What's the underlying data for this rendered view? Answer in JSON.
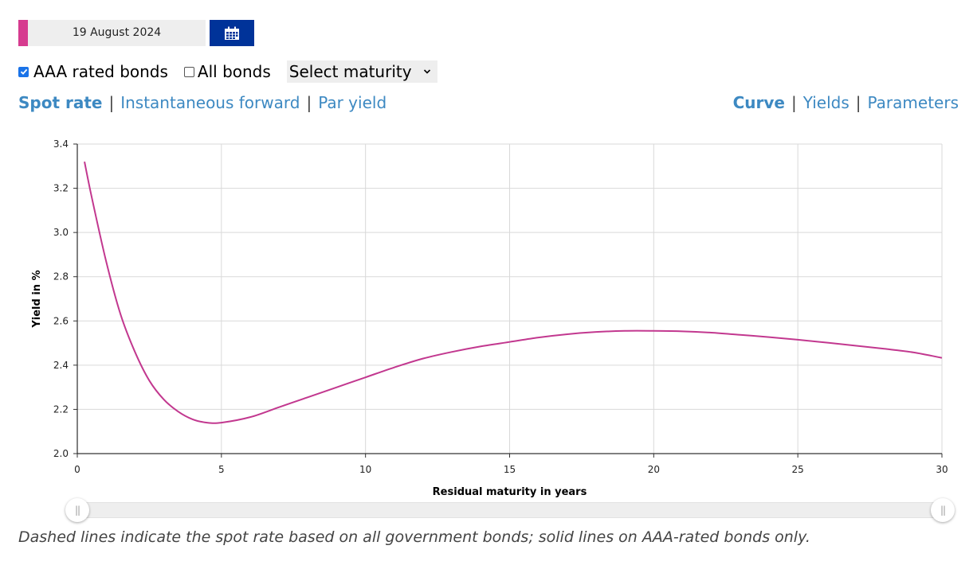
{
  "date_picker": {
    "value": "19 August 2024",
    "accent_color": "#d63b8f",
    "button_icon": "calendar-icon",
    "button_color": "#003399"
  },
  "filters": {
    "aaa": {
      "label": "AAA rated bonds",
      "checked": true
    },
    "all": {
      "label": "All bonds",
      "checked": false
    },
    "maturity_select": {
      "value": "Select maturity"
    }
  },
  "rate_tabs": [
    {
      "label": "Spot rate",
      "active": true
    },
    {
      "label": "Instantaneous forward",
      "active": false
    },
    {
      "label": "Par yield",
      "active": false
    }
  ],
  "view_tabs": [
    {
      "label": "Curve",
      "active": true
    },
    {
      "label": "Yields",
      "active": false
    },
    {
      "label": "Parameters",
      "active": false
    }
  ],
  "separator": "|",
  "chart_data": {
    "type": "line",
    "xlabel": "Residual maturity in years",
    "ylabel": "Yield in %",
    "xlim": [
      0,
      30
    ],
    "ylim": [
      2.0,
      3.4
    ],
    "x_ticks": [
      "0",
      "5",
      "10",
      "15",
      "20",
      "25",
      "30"
    ],
    "y_ticks": [
      "2.0",
      "2.2",
      "2.4",
      "2.6",
      "2.8",
      "3.0",
      "3.2",
      "3.4"
    ],
    "grid": true,
    "series": [
      {
        "color": "#c2388f",
        "style": "solid",
        "x": [
          0.25,
          0.5,
          1,
          1.5,
          2,
          2.5,
          3,
          3.5,
          4,
          4.5,
          5,
          6,
          7,
          8,
          9,
          10,
          11,
          12,
          13,
          14,
          15,
          16,
          17,
          18,
          19,
          20,
          21,
          22,
          23,
          24,
          25,
          26,
          27,
          28,
          29,
          30
        ],
        "y": [
          3.32,
          3.16,
          2.87,
          2.63,
          2.46,
          2.33,
          2.245,
          2.19,
          2.155,
          2.14,
          2.14,
          2.165,
          2.21,
          2.255,
          2.3,
          2.345,
          2.39,
          2.43,
          2.46,
          2.485,
          2.505,
          2.525,
          2.54,
          2.55,
          2.555,
          2.555,
          2.553,
          2.547,
          2.537,
          2.527,
          2.515,
          2.502,
          2.488,
          2.474,
          2.458,
          2.433
        ]
      }
    ]
  },
  "range_slider": {
    "min": 0,
    "max": 30,
    "from": 0,
    "to": 30,
    "grip": "||"
  },
  "footnote": "Dashed lines indicate the spot rate based on all government bonds; solid lines on AAA-rated bonds only."
}
